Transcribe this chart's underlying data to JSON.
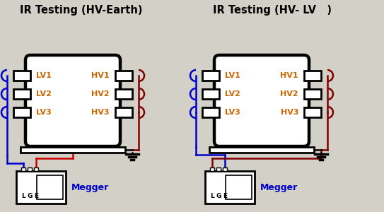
{
  "bg_color": "#d3d0c7",
  "title1": "IR Testing (HV-Earth)",
  "title2": "IR Testing (HV- LV   )",
  "title_color": "#000000",
  "title_fontsize": 10.5,
  "lv_labels": [
    "LV1",
    "LV2",
    "LV3"
  ],
  "hv_labels": [
    "HV1",
    "HV2",
    "HV3"
  ],
  "label_color": "#cc6600",
  "megger_label": "Megger",
  "megger_color": "#0000cc",
  "lge_labels": [
    "L",
    "G",
    "E"
  ],
  "wire_blue": "#0000cc",
  "wire_red": "#cc0000",
  "wire_dark_red": "#800000",
  "wire_black": "#000000",
  "lw_thick": 3.2,
  "lw_med": 2.0,
  "lw_wire": 1.8,
  "lw_thin": 1.2
}
